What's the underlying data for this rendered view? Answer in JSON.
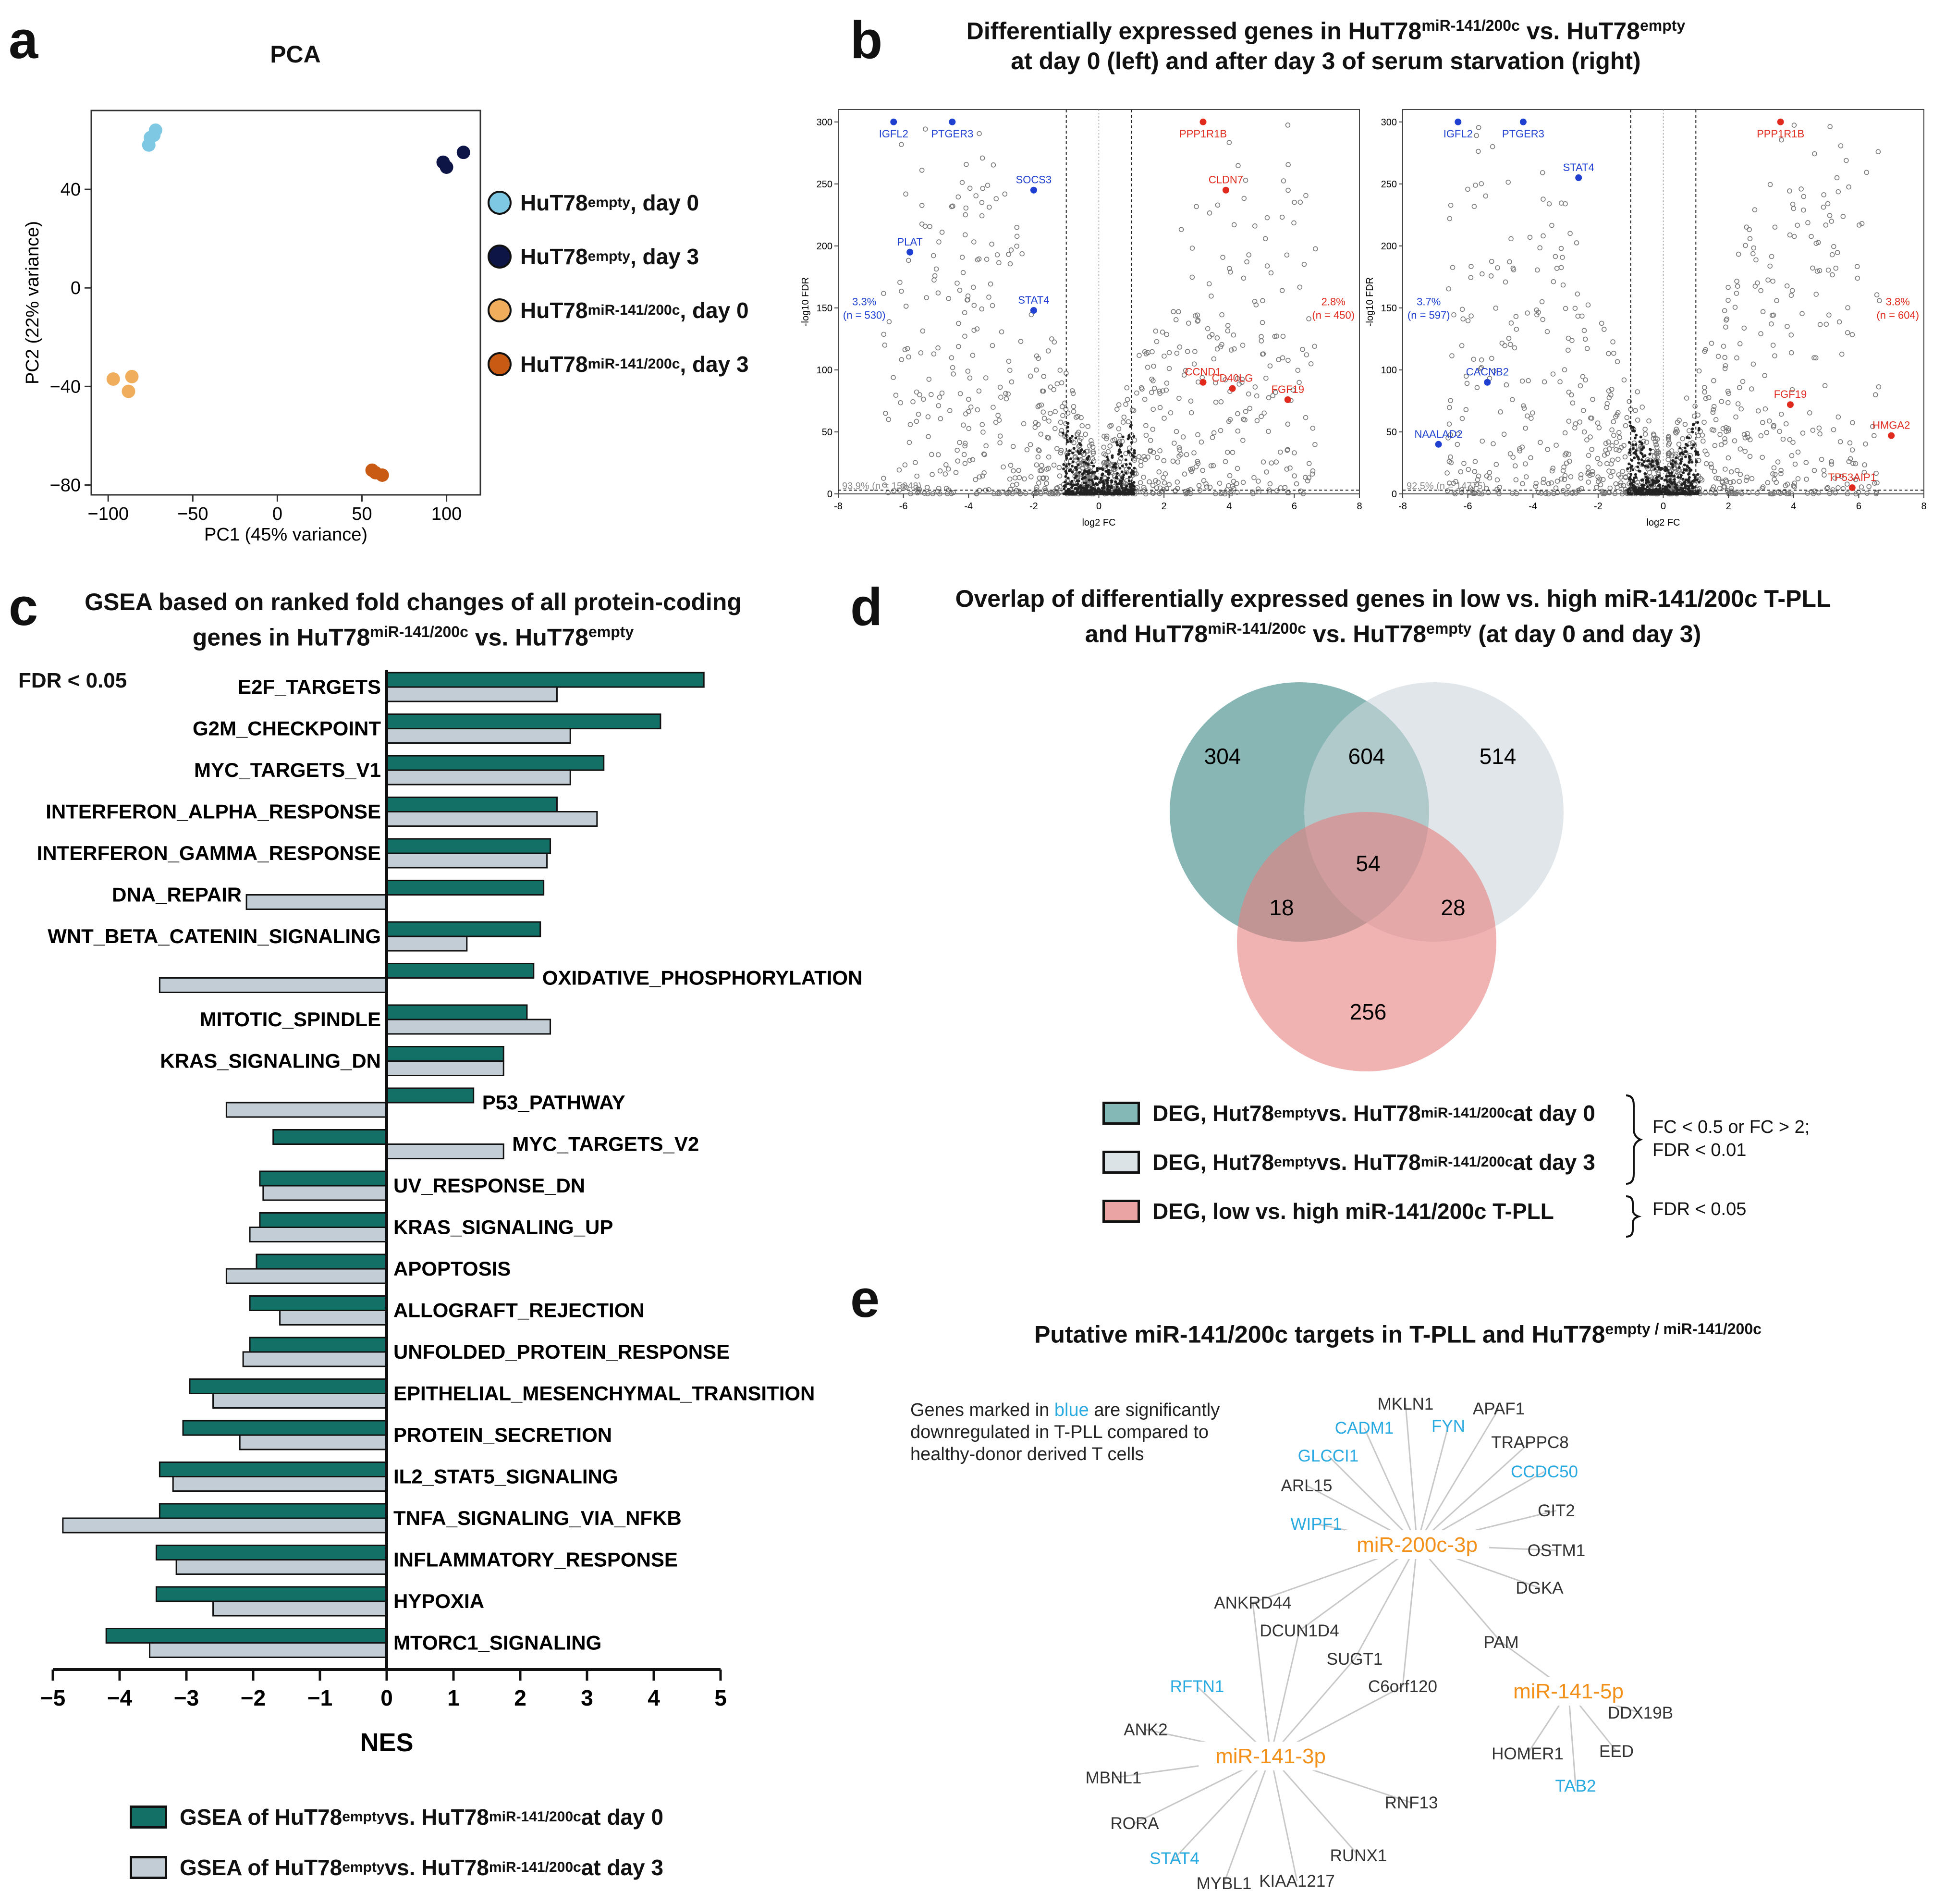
{
  "panels": {
    "a": {
      "letter": "a",
      "title": "PCA",
      "xlabel": "PC1 (45% variance)",
      "ylabel": "PC2 (22% variance)",
      "xticks": [
        "−100",
        "−50",
        "0",
        "50",
        "100"
      ],
      "yticks": [
        "40",
        "0",
        "−40",
        "−80"
      ],
      "legend": [
        {
          "name": "HuT78",
          "sup": "empty",
          "suffix": ", day 0",
          "color": "#7ec8e3"
        },
        {
          "name": "HuT78",
          "sup": "empty",
          "suffix": ", day 3",
          "color": "#0d1446"
        },
        {
          "name": "HuT78",
          "sup": "miR-141/200c",
          "suffix": ", day 0",
          "color": "#f0ae5c"
        },
        {
          "name": "HuT78",
          "sup": "miR-141/200c",
          "suffix": ", day 3",
          "color": "#c85a14"
        }
      ]
    },
    "b": {
      "letter": "b",
      "title_line1_a": "Differentially expressed genes in HuT78",
      "title_line1_sup1": "miR-141/200c",
      "title_line1_b": " vs. HuT78",
      "title_line1_sup2": "empty",
      "title_line2": "at day 0 (left) and after day 3 of serum starvation (right)",
      "xlabel": "log2 FC",
      "ylabel": "-log10 FDR",
      "left": {
        "down_pct": "3.3%",
        "down_n": "(n = 530)",
        "up_pct": "2.8%",
        "up_n": "(n = 450)",
        "ns": "93.9% (n = 15048)"
      },
      "right": {
        "down_pct": "3.7%",
        "down_n": "(n = 597)",
        "up_pct": "3.8%",
        "up_n": "(n = 604)",
        "ns": "92.5% (n = 14775)"
      }
    },
    "c": {
      "letter": "c",
      "title_line1": "GSEA based on ranked fold changes of all protein-coding",
      "title_line2_a": "genes in HuT78",
      "title_line2_sup1": "miR-141/200c",
      "title_line2_b": " vs. HuT78",
      "title_line2_sup2": "empty",
      "fdr": "FDR < 0.05",
      "legend": [
        {
          "text_a": "GSEA of HuT78",
          "sup1": "empty",
          "text_b": " vs. HuT78",
          "sup2": "miR-141/200c",
          "text_c": " at day 0",
          "color": "#127067"
        },
        {
          "text_a": "GSEA of HuT78",
          "sup1": "empty",
          "text_b": " vs. HuT78",
          "sup2": "miR-141/200c",
          "text_c": " at day 3",
          "color": "#c2cdd5"
        }
      ]
    },
    "d": {
      "letter": "d",
      "title_line1": "Overlap of differentially expressed genes in low vs. high miR-141/200c T-PLL",
      "title_line2_a": "and HuT78",
      "title_line2_sup1": "miR-141/200c",
      "title_line2_b": " vs. HuT78",
      "title_line2_sup2": "empty",
      "title_line2_c": " (at day 0 and day 3)",
      "counts": {
        "a_only": "304",
        "ab": "604",
        "b_only": "514",
        "abc": "54",
        "ac": "18",
        "bc": "28",
        "c_only": "256"
      },
      "legend": [
        {
          "text_a": "DEG, Hut78",
          "sup1": "empty",
          "text_b": " vs. HuT78",
          "sup2": "miR-141/200c",
          "text_c": " at day 0",
          "color": "#84b8b6"
        },
        {
          "text_a": "DEG, Hut78",
          "sup1": "empty",
          "text_b": " vs. HuT78",
          "sup2": "miR-141/200c",
          "text_c": " at day 3",
          "color": "#dce3e7"
        },
        {
          "text_a": "DEG, low vs. high miR-141/200c T-PLL",
          "sup1": "",
          "text_b": "",
          "sup2": "",
          "text_c": "",
          "color": "#eba4a4"
        }
      ],
      "note1_line1": "FC < 0.5 or FC > 2;",
      "note1_line2": "FDR < 0.01",
      "note2": "FDR < 0.05"
    },
    "e": {
      "letter": "e",
      "title_a": "Putative miR-141/200c targets in T-PLL and HuT78",
      "title_sup": "empty / miR-141/200c",
      "note_line1_a": "Genes marked in ",
      "note_line1_blue": "blue",
      "note_line1_b": " are significantly",
      "note_line2": "downregulated in T-PLL compared to",
      "note_line3": "healthy-donor derived T cells"
    }
  },
  "chart_data": [
    {
      "type": "scatter",
      "title": "PCA",
      "xlabel": "PC1 (45% variance)",
      "ylabel": "PC2 (22% variance)",
      "xlim": [
        -110,
        120
      ],
      "ylim": [
        -84,
        72
      ],
      "series": [
        {
          "name": "HuT78 empty, day 0",
          "points": [
            [
              -75,
              61
            ],
            [
              -72,
              64
            ],
            [
              -76,
              58
            ],
            [
              -73,
              62
            ]
          ]
        },
        {
          "name": "HuT78 empty, day 3",
          "points": [
            [
              98,
              51
            ],
            [
              100,
              49
            ],
            [
              110,
              55
            ]
          ]
        },
        {
          "name": "HuT78 miR-141/200c, day 0",
          "points": [
            [
              -97,
              -37
            ],
            [
              -86,
              -36
            ],
            [
              -88,
              -42
            ]
          ]
        },
        {
          "name": "HuT78 miR-141/200c, day 3",
          "points": [
            [
              56,
              -74
            ],
            [
              58,
              -75
            ],
            [
              62,
              -76
            ]
          ]
        }
      ]
    },
    {
      "type": "scatter",
      "title": "Volcano day 0",
      "xlabel": "log2 FC",
      "ylabel": "-log10 FDR",
      "xlim": [
        -8,
        8
      ],
      "ylim": [
        0,
        310
      ],
      "labeled_points": [
        {
          "gene": "IGFL2",
          "x": -6.3,
          "y": 300,
          "dir": "down"
        },
        {
          "gene": "PTGER3",
          "x": -4.5,
          "y": 300,
          "dir": "down"
        },
        {
          "gene": "SOCS3",
          "x": -2.0,
          "y": 245,
          "dir": "down"
        },
        {
          "gene": "PLAT",
          "x": -5.8,
          "y": 195,
          "dir": "down"
        },
        {
          "gene": "STAT4",
          "x": -2.0,
          "y": 148,
          "dir": "down"
        },
        {
          "gene": "PPP1R1B",
          "x": 3.2,
          "y": 300,
          "dir": "up"
        },
        {
          "gene": "CLDN7",
          "x": 3.9,
          "y": 245,
          "dir": "up"
        },
        {
          "gene": "CCND1",
          "x": 3.2,
          "y": 90,
          "dir": "up"
        },
        {
          "gene": "CD40LG",
          "x": 4.1,
          "y": 85,
          "dir": "up"
        },
        {
          "gene": "FGF19",
          "x": 5.8,
          "y": 76,
          "dir": "up"
        }
      ]
    },
    {
      "type": "scatter",
      "title": "Volcano day 3",
      "xlabel": "log2 FC",
      "ylabel": "-log10 FDR",
      "xlim": [
        -8,
        8
      ],
      "ylim": [
        0,
        310
      ],
      "labeled_points": [
        {
          "gene": "IGFL2",
          "x": -6.3,
          "y": 300,
          "dir": "down"
        },
        {
          "gene": "PTGER3",
          "x": -4.3,
          "y": 300,
          "dir": "down"
        },
        {
          "gene": "STAT4",
          "x": -2.6,
          "y": 255,
          "dir": "down"
        },
        {
          "gene": "CACNB2",
          "x": -5.4,
          "y": 90,
          "dir": "down"
        },
        {
          "gene": "NAALAD2",
          "x": -6.9,
          "y": 40,
          "dir": "down"
        },
        {
          "gene": "PPP1R1B",
          "x": 3.6,
          "y": 300,
          "dir": "up"
        },
        {
          "gene": "FGF19",
          "x": 3.9,
          "y": 72,
          "dir": "up"
        },
        {
          "gene": "HMGA2",
          "x": 7.0,
          "y": 47,
          "dir": "up"
        },
        {
          "gene": "TP53AIP1",
          "x": 5.8,
          "y": 5,
          "dir": "up"
        }
      ]
    },
    {
      "type": "bar",
      "orientation": "horizontal",
      "title": "GSEA based on ranked fold changes of all protein-coding genes",
      "xlabel": "NES",
      "xlim": [
        -5,
        5
      ],
      "xticks": [
        "−5",
        "−4",
        "−3",
        "−2",
        "−1",
        "0",
        "1",
        "2",
        "3",
        "4",
        "5"
      ],
      "categories": [
        "E2F_TARGETS",
        "G2M_CHECKPOINT",
        "MYC_TARGETS_V1",
        "INTERFERON_ALPHA_RESPONSE",
        "INTERFERON_GAMMA_RESPONSE",
        "DNA_REPAIR",
        "WNT_BETA_CATENIN_SIGNALING",
        "OXIDATIVE_PHOSPHORYLATION",
        "MITOTIC_SPINDLE",
        "KRAS_SIGNALING_DN",
        "P53_PATHWAY",
        "MYC_TARGETS_V2",
        "UV_RESPONSE_DN",
        "KRAS_SIGNALING_UP",
        "APOPTOSIS",
        "ALLOGRAFT_REJECTION",
        "UNFOLDED_PROTEIN_RESPONSE",
        "EPITHELIAL_MESENCHYMAL_TRANSITION",
        "PROTEIN_SECRETION",
        "IL2_STAT5_SIGNALING",
        "TNFA_SIGNALING_VIA_NFKB",
        "INFLAMMATORY_RESPONSE",
        "HYPOXIA",
        "MTORC1_SIGNALING"
      ],
      "series": [
        {
          "name": "day 0",
          "values": [
            4.75,
            4.1,
            3.25,
            2.55,
            2.45,
            2.35,
            2.3,
            2.2,
            2.1,
            1.75,
            1.3,
            -1.7,
            -1.9,
            -1.9,
            -1.95,
            -2.05,
            -2.05,
            -2.95,
            -3.05,
            -3.4,
            -3.4,
            -3.45,
            -3.45,
            -4.2
          ]
        },
        {
          "name": "day 3",
          "values": [
            2.55,
            2.75,
            2.75,
            3.15,
            2.4,
            -2.1,
            1.2,
            -3.4,
            2.45,
            1.75,
            -2.4,
            1.75,
            -1.85,
            -2.05,
            -2.4,
            -1.6,
            -2.15,
            -2.6,
            -2.2,
            -3.2,
            -4.85,
            -3.15,
            -2.6,
            -3.55
          ]
        }
      ]
    }
  ],
  "network": {
    "hubs": [
      {
        "id": "miR-200c-3p",
        "label": "miR-200c-3p"
      },
      {
        "id": "miR-141-3p",
        "label": "miR-141-3p"
      },
      {
        "id": "miR-141-5p",
        "label": "miR-141-5p"
      }
    ],
    "targets": [
      {
        "label": "MKLN1",
        "blue": false,
        "hub": "miR-200c-3p"
      },
      {
        "label": "APAF1",
        "blue": false,
        "hub": "miR-200c-3p"
      },
      {
        "label": "CADM1",
        "blue": true,
        "hub": "miR-200c-3p"
      },
      {
        "label": "FYN",
        "blue": true,
        "hub": "miR-200c-3p"
      },
      {
        "label": "TRAPPC8",
        "blue": false,
        "hub": "miR-200c-3p"
      },
      {
        "label": "GLCCI1",
        "blue": true,
        "hub": "miR-200c-3p"
      },
      {
        "label": "CCDC50",
        "blue": true,
        "hub": "miR-200c-3p"
      },
      {
        "label": "ARL15",
        "blue": false,
        "hub": "miR-200c-3p"
      },
      {
        "label": "GIT2",
        "blue": false,
        "hub": "miR-200c-3p"
      },
      {
        "label": "WIPF1",
        "blue": true,
        "hub": "miR-200c-3p"
      },
      {
        "label": "OSTM1",
        "blue": false,
        "hub": "miR-200c-3p"
      },
      {
        "label": "DGKA",
        "blue": false,
        "hub": "miR-200c-3p"
      },
      {
        "label": "ANKRD44",
        "blue": false,
        "hub": "both"
      },
      {
        "label": "DCUN1D4",
        "blue": false,
        "hub": "both"
      },
      {
        "label": "SUGT1",
        "blue": false,
        "hub": "both"
      },
      {
        "label": "C6orf120",
        "blue": false,
        "hub": "both"
      },
      {
        "label": "PAM",
        "blue": false,
        "hub": "miR-200c-3p/miR-141-5p"
      },
      {
        "label": "RFTN1",
        "blue": true,
        "hub": "miR-141-3p"
      },
      {
        "label": "ANK2",
        "blue": false,
        "hub": "miR-141-3p"
      },
      {
        "label": "MBNL1",
        "blue": false,
        "hub": "miR-141-3p"
      },
      {
        "label": "RORA",
        "blue": false,
        "hub": "miR-141-3p"
      },
      {
        "label": "STAT4",
        "blue": true,
        "hub": "miR-141-3p"
      },
      {
        "label": "MYBL1",
        "blue": false,
        "hub": "miR-141-3p"
      },
      {
        "label": "KIAA1217",
        "blue": false,
        "hub": "miR-141-3p"
      },
      {
        "label": "RUNX1",
        "blue": false,
        "hub": "miR-141-3p"
      },
      {
        "label": "RNF13",
        "blue": false,
        "hub": "miR-141-3p"
      },
      {
        "label": "DDX19B",
        "blue": false,
        "hub": "miR-141-5p"
      },
      {
        "label": "HOMER1",
        "blue": false,
        "hub": "miR-141-5p"
      },
      {
        "label": "EED",
        "blue": false,
        "hub": "miR-141-5p"
      },
      {
        "label": "TAB2",
        "blue": true,
        "hub": "miR-141-5p"
      }
    ]
  }
}
